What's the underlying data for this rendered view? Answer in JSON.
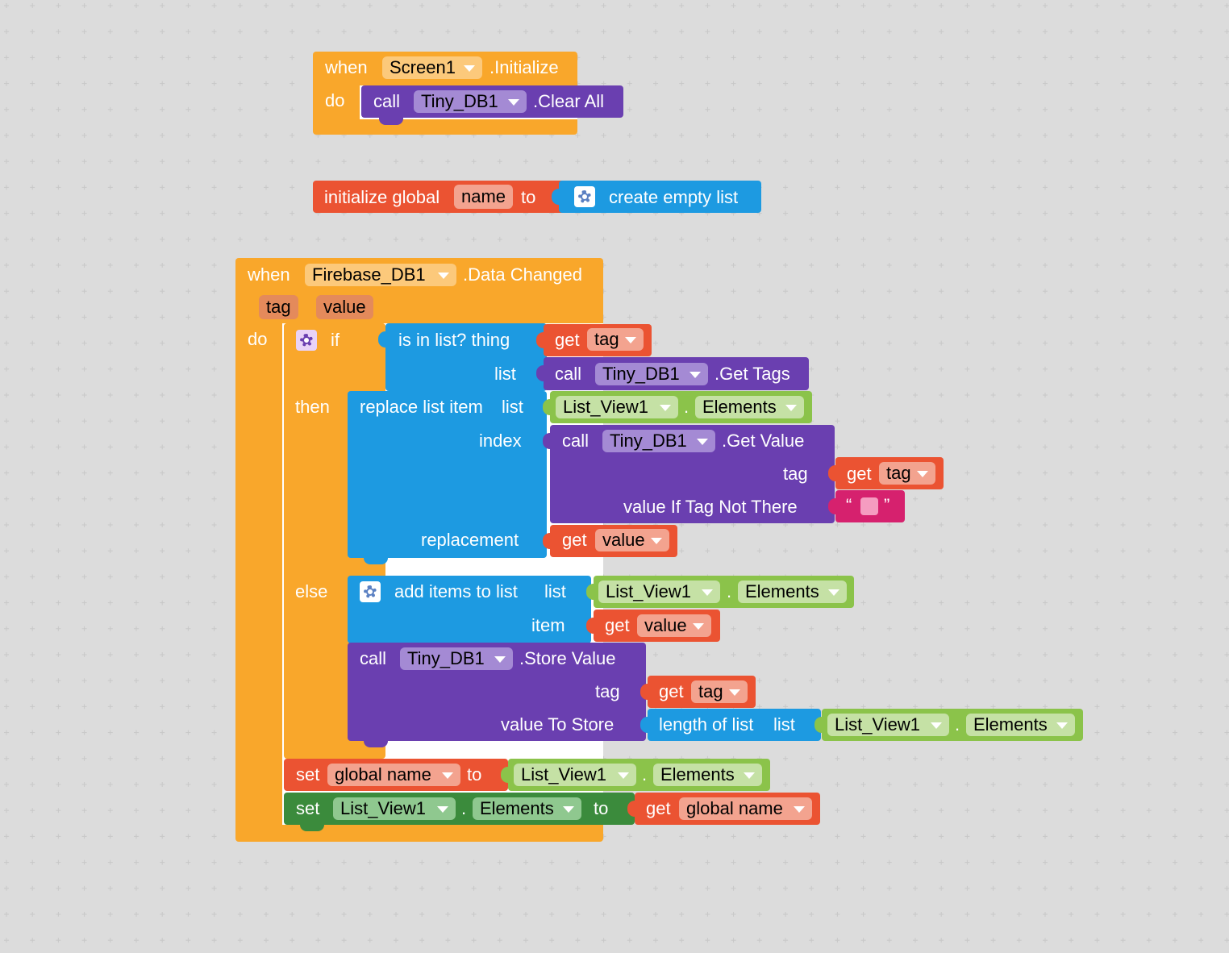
{
  "colors": {
    "event": "#f9a72b",
    "component_call": "#6a3fb0",
    "variable": "#eb5332",
    "list": "#1d9ae1",
    "text": "#d6216e",
    "component_prop": "#8bc34a",
    "setter": "#3b8b3c"
  },
  "block1": {
    "when_label": "when",
    "component": "Screen1",
    "event": ".Initialize",
    "do_label": "do",
    "call": {
      "call_label": "call",
      "component": "Tiny_DB1",
      "method": ".Clear All"
    }
  },
  "block2": {
    "init_label": "initialize global",
    "var_name": "name",
    "to_label": "to",
    "value_label": "create empty list"
  },
  "block3": {
    "when_label": "when",
    "component": "Firebase_DB1",
    "event": ".Data Changed",
    "params": [
      "tag",
      "value"
    ],
    "do_label": "do",
    "if_label": "if",
    "then_label": "then",
    "else_label": "else",
    "cond": {
      "label": "is in list? thing",
      "list_label": "list",
      "get_label": "get",
      "get_var": "tag",
      "call_label": "call",
      "component": "Tiny_DB1",
      "method": ".Get Tags"
    },
    "replace": {
      "label": "replace list item",
      "list_label": "list",
      "index_label": "index",
      "replacement_label": "replacement",
      "list_component": "List_View1",
      "dot": ".",
      "list_prop": "Elements",
      "call_label": "call",
      "call_component": "Tiny_DB1",
      "call_method": ".Get Value",
      "tag_label": "tag",
      "get_label": "get",
      "tag_var": "tag",
      "vitnt_label": "value If Tag Not There",
      "quote_open": "“",
      "quote_close": "”",
      "repl_get_label": "get",
      "repl_var": "value"
    },
    "add_items": {
      "label": "add items to list",
      "list_label": "list",
      "item_label": "item",
      "list_component": "List_View1",
      "dot": ".",
      "list_prop": "Elements",
      "get_label": "get",
      "item_var": "value"
    },
    "store": {
      "call_label": "call",
      "component": "Tiny_DB1",
      "method": ".Store Value",
      "tag_label": "tag",
      "get_label": "get",
      "tag_var": "tag",
      "value_label": "value To Store",
      "length_label": "length of list",
      "list_label": "list",
      "list_component": "List_View1",
      "dot": ".",
      "list_prop": "Elements"
    },
    "set_global": {
      "set_label": "set",
      "var": "global name",
      "to_label": "to",
      "component": "List_View1",
      "dot": ".",
      "prop": "Elements"
    },
    "set_comp": {
      "set_label": "set",
      "component": "List_View1",
      "dot": ".",
      "prop": "Elements",
      "to_label": "to",
      "get_label": "get",
      "var": "global name"
    }
  }
}
